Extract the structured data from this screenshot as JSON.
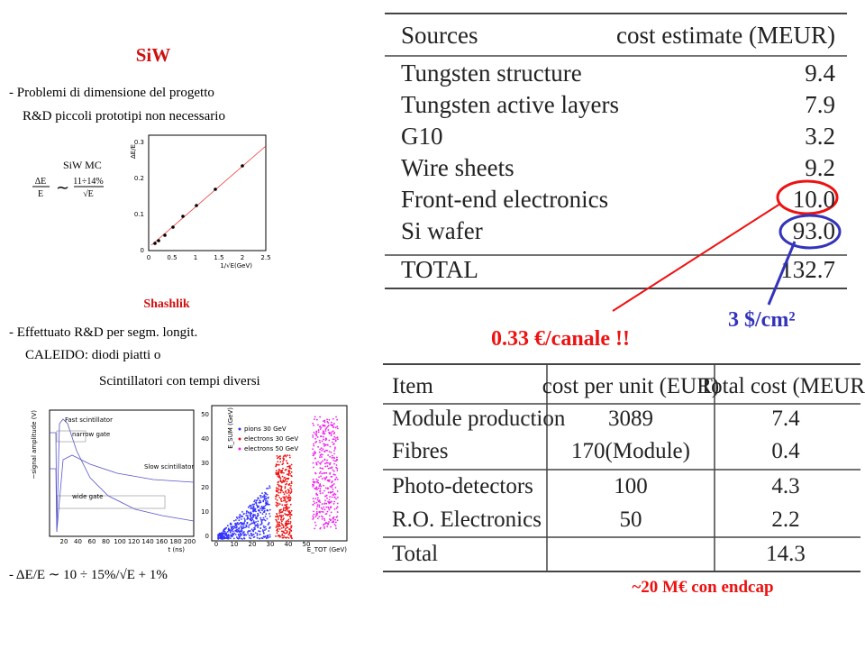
{
  "left": {
    "siw_title": "SiW",
    "siw_lines": [
      "- Problemi di dimensione del progetto",
      "R&D piccoli prototipi non necessario"
    ],
    "siw_mc": "SiW MC",
    "formula": {
      "num1": "ΔE",
      "den1": "E",
      "sim": "∼",
      "num2": "11÷14%",
      "den2": "√E"
    },
    "plot1": {
      "ylabel": "ΔE/E",
      "xlabel": "1/√E(GeV)",
      "yticks": [
        "0",
        "0.1",
        "0.2",
        "0.3"
      ],
      "xticks": [
        "0",
        "0.5",
        "1",
        "1.5",
        "2",
        "2.5"
      ]
    },
    "shashlik_title": "Shashlik",
    "shashlik_lines": [
      "- Effettuato R&D per segm. longit.",
      "CALEIDO: diodi piatti o",
      "Scintillatori con tempi diversi"
    ],
    "pulse": {
      "ylabel": "~signal amplitude (V)",
      "xlabel": "t (ns)",
      "labels": [
        "Fast scintillator",
        "narrow gate",
        "Slow scintillator",
        "wide gate"
      ],
      "xticks": [
        "20",
        "40",
        "60",
        "80",
        "100",
        "120",
        "140",
        "160",
        "180",
        "200"
      ]
    },
    "scatter": {
      "ylabel": "E_SUM (GeV)",
      "xlabel": "E_TOT (GeV)",
      "legend": [
        "pions 30 GeV",
        "electrons 30 GeV",
        "electrons 50 GeV"
      ],
      "xticks": [
        "0",
        "10",
        "20",
        "30",
        "40",
        "50"
      ],
      "yticks": [
        "0",
        "10",
        "20",
        "30",
        "40",
        "50"
      ]
    },
    "bottom_formula": "- ΔE/E ∼ 10 ÷ 15%/√E + 1%"
  },
  "table1": {
    "header": [
      "Sources",
      "cost estimate (MEUR)"
    ],
    "rows": [
      [
        "Tungsten structure",
        "9.4"
      ],
      [
        "Tungsten active layers",
        "7.9"
      ],
      [
        "G10",
        "3.2"
      ],
      [
        "Wire sheets",
        "9.2"
      ],
      [
        "Front-end electronics",
        "10.0"
      ],
      [
        "Si wafer",
        "93.0"
      ]
    ],
    "total": [
      "TOTAL",
      "132.7"
    ]
  },
  "annotations": {
    "channel": "0.33 €/canale !!",
    "area": "3 $/cm²",
    "endcap": "~20  M€ con endcap"
  },
  "table2": {
    "header": [
      "Item",
      "cost per unit (EUR)",
      "Total cost (MEUR)"
    ],
    "rows": [
      [
        "Module production",
        "3089",
        "7.4"
      ],
      [
        "Fibres",
        "170(Module)",
        "0.4"
      ],
      [
        "Photo-detectors",
        "100",
        "4.3"
      ],
      [
        "R.O. Electronics",
        "50",
        "2.2"
      ]
    ],
    "total": [
      "Total",
      "14.3"
    ]
  }
}
